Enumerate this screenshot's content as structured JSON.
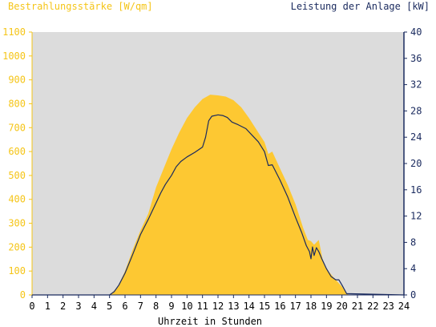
{
  "chart_data": {
    "type": "area",
    "left_axis_title": "Bestrahlungsstärke [W/qm]",
    "right_axis_title": "Leistung der Anlage [kW]",
    "xlabel": "Uhrzeit in Stunden",
    "xlim": [
      0,
      24
    ],
    "ylim_left": [
      0,
      1100
    ],
    "ylim_right": [
      0,
      40
    ],
    "x_ticks": [
      "0",
      "1",
      "2",
      "3",
      "4",
      "5",
      "6",
      "7",
      "8",
      "9",
      "10",
      "11",
      "12",
      "13",
      "14",
      "15",
      "16",
      "17",
      "18",
      "19",
      "20",
      "21",
      "22",
      "23",
      "24"
    ],
    "y_ticks_left": [
      "0",
      "100",
      "200",
      "300",
      "400",
      "500",
      "600",
      "700",
      "800",
      "900",
      "1000",
      "1100"
    ],
    "y_ticks_right": [
      "0",
      "4",
      "8",
      "12",
      "16",
      "20",
      "24",
      "28",
      "32",
      "36",
      "40"
    ],
    "grid": false,
    "colors": {
      "plot_bg": "#dcdcdc",
      "irradiance_fill": "#fdc832",
      "power_line": "#1a2a5e",
      "left_axis": "#f5c518",
      "right_axis": "#1a2a5e"
    },
    "series": [
      {
        "name": "Bestrahlungsstärke [W/qm]",
        "axis": "left",
        "kind": "area",
        "x": [
          0,
          5.0,
          5.5,
          6.0,
          6.5,
          7.0,
          7.5,
          8.0,
          8.5,
          9.0,
          9.5,
          10.0,
          10.5,
          11.0,
          11.5,
          12.0,
          12.5,
          13.0,
          13.5,
          14.0,
          14.5,
          15.0,
          15.25,
          15.5,
          16.0,
          16.5,
          17.0,
          17.5,
          17.8,
          18.0,
          18.2,
          18.5,
          18.75,
          19.0,
          19.5,
          20.0,
          20.3,
          20.5,
          24
        ],
        "y": [
          0,
          0,
          30,
          100,
          190,
          270,
          340,
          450,
          530,
          610,
          680,
          740,
          785,
          820,
          838,
          835,
          830,
          815,
          785,
          740,
          690,
          640,
          590,
          600,
          530,
          460,
          380,
          280,
          230,
          225,
          210,
          230,
          150,
          110,
          70,
          35,
          5,
          0,
          0
        ]
      },
      {
        "name": "Leistung der Anlage [kW]",
        "axis": "right",
        "kind": "line",
        "x": [
          0,
          5.0,
          5.3,
          5.6,
          6.0,
          6.5,
          7.0,
          7.5,
          8.0,
          8.3,
          8.6,
          9.0,
          9.3,
          9.6,
          10.0,
          10.5,
          11.0,
          11.2,
          11.4,
          11.6,
          12.0,
          12.3,
          12.6,
          12.9,
          13.3,
          13.8,
          14.2,
          14.6,
          15.0,
          15.25,
          15.5,
          16.0,
          16.5,
          17.0,
          17.4,
          17.7,
          17.9,
          18.0,
          18.1,
          18.2,
          18.35,
          18.5,
          18.7,
          19.0,
          19.3,
          19.6,
          19.8,
          20.0,
          20.3,
          24
        ],
        "y": [
          0,
          0,
          0.5,
          1.5,
          3.3,
          6.2,
          9.2,
          11.5,
          14.0,
          15.5,
          16.8,
          18.2,
          19.5,
          20.3,
          21.0,
          21.7,
          22.5,
          24.0,
          26.5,
          27.2,
          27.4,
          27.3,
          27.0,
          26.3,
          25.9,
          25.3,
          24.3,
          23.3,
          21.8,
          19.7,
          19.8,
          17.5,
          14.9,
          11.8,
          9.5,
          7.5,
          6.6,
          5.5,
          7.3,
          6.0,
          7.2,
          6.6,
          5.5,
          4.0,
          2.8,
          2.3,
          2.3,
          1.5,
          0.2,
          0
        ]
      }
    ]
  }
}
